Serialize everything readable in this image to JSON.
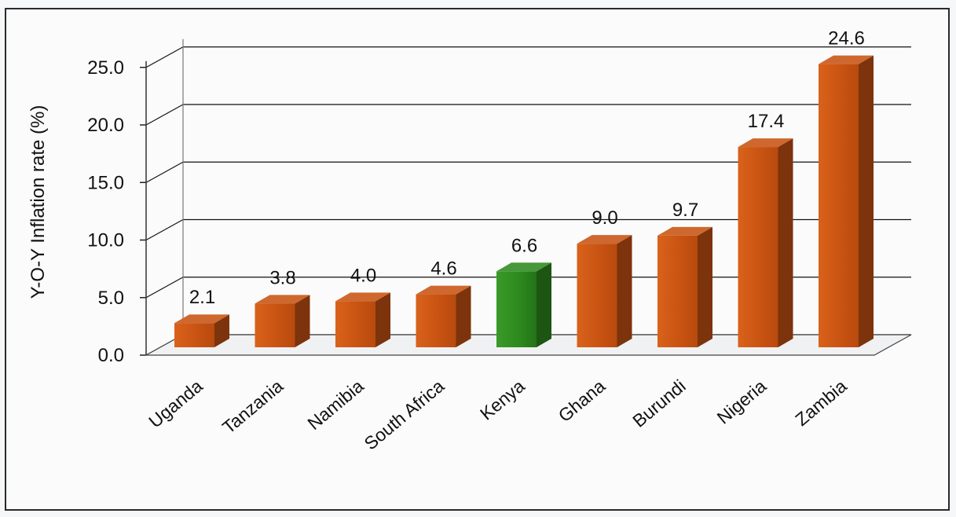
{
  "chart_data": {
    "type": "bar",
    "ylabel": "Y-O-Y Inflation rate (%)",
    "ylim": [
      0,
      25
    ],
    "yticks": [
      "0.0",
      "5.0",
      "10.0",
      "15.0",
      "20.0",
      "25.0"
    ],
    "categories": [
      "Uganda",
      "Tanzania",
      "Namibia",
      "South Africa",
      "Kenya",
      "Ghana",
      "Burundi",
      "Nigeria",
      "Zambia"
    ],
    "values": [
      2.1,
      3.8,
      4.0,
      4.6,
      6.6,
      9.0,
      9.7,
      17.4,
      24.6
    ],
    "data_labels": [
      "2.1",
      "3.8",
      "4.0",
      "4.6",
      "6.6",
      "9.0",
      "9.7",
      "17.4",
      "24.6"
    ],
    "highlight_category": "Kenya",
    "grid": true,
    "style": "3d-column",
    "colors": {
      "default_bar": "#c95312",
      "highlight_bar": "#2e8a1e",
      "grid": "#111111"
    }
  }
}
